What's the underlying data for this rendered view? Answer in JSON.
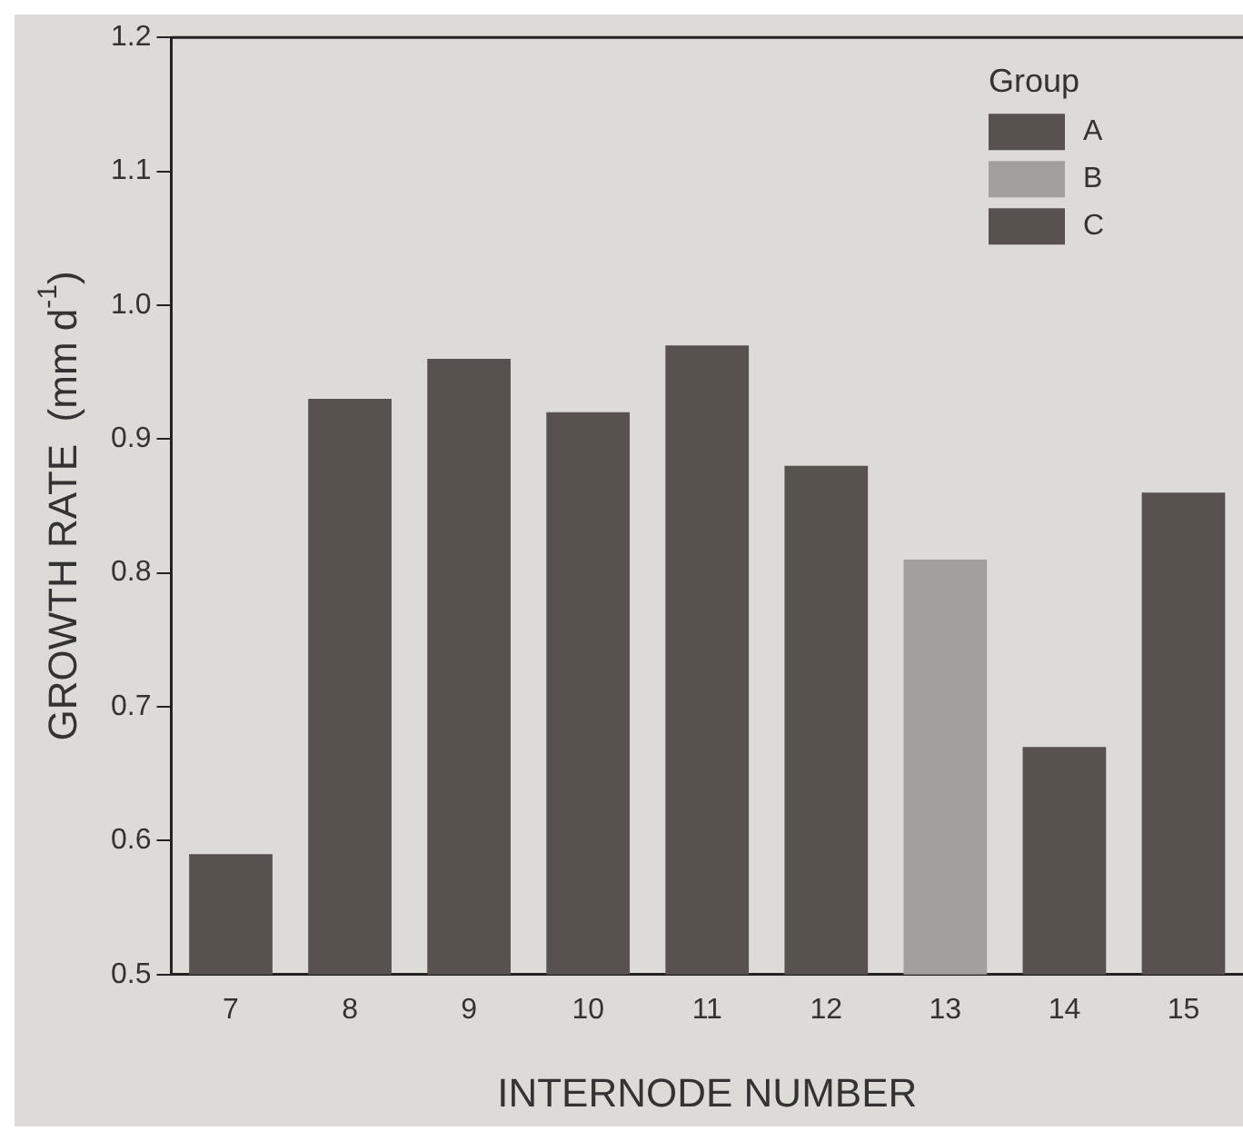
{
  "chart_data": {
    "type": "bar",
    "xlabel": "INTERNODE NUMBER",
    "ylabel": "GROWTH RATE  (mm d$^{-1}$)",
    "legend_title": "Group",
    "categories": [
      "7",
      "8",
      "9",
      "10",
      "11",
      "12",
      "13",
      "14",
      "15"
    ],
    "series": [
      {
        "name": "A",
        "color": "#58524f",
        "values": [
          0.59,
          0.93,
          0.96,
          0.92,
          0.97,
          0.88,
          null,
          null,
          null
        ]
      },
      {
        "name": "B",
        "color": "#a29f9c",
        "values": [
          null,
          null,
          null,
          null,
          null,
          null,
          0.81,
          null,
          null
        ]
      },
      {
        "name": "C",
        "color": "#58524f",
        "values": [
          null,
          null,
          null,
          null,
          null,
          null,
          null,
          0.67,
          0.86
        ]
      }
    ],
    "ylim": [
      0.5,
      1.2
    ],
    "yticks": [
      0.5,
      0.6,
      0.7,
      0.8,
      0.9,
      {
        "value": 1,
        "label": "1.0"
      },
      1.1,
      1.2
    ],
    "grid": false,
    "legend": "top right"
  }
}
